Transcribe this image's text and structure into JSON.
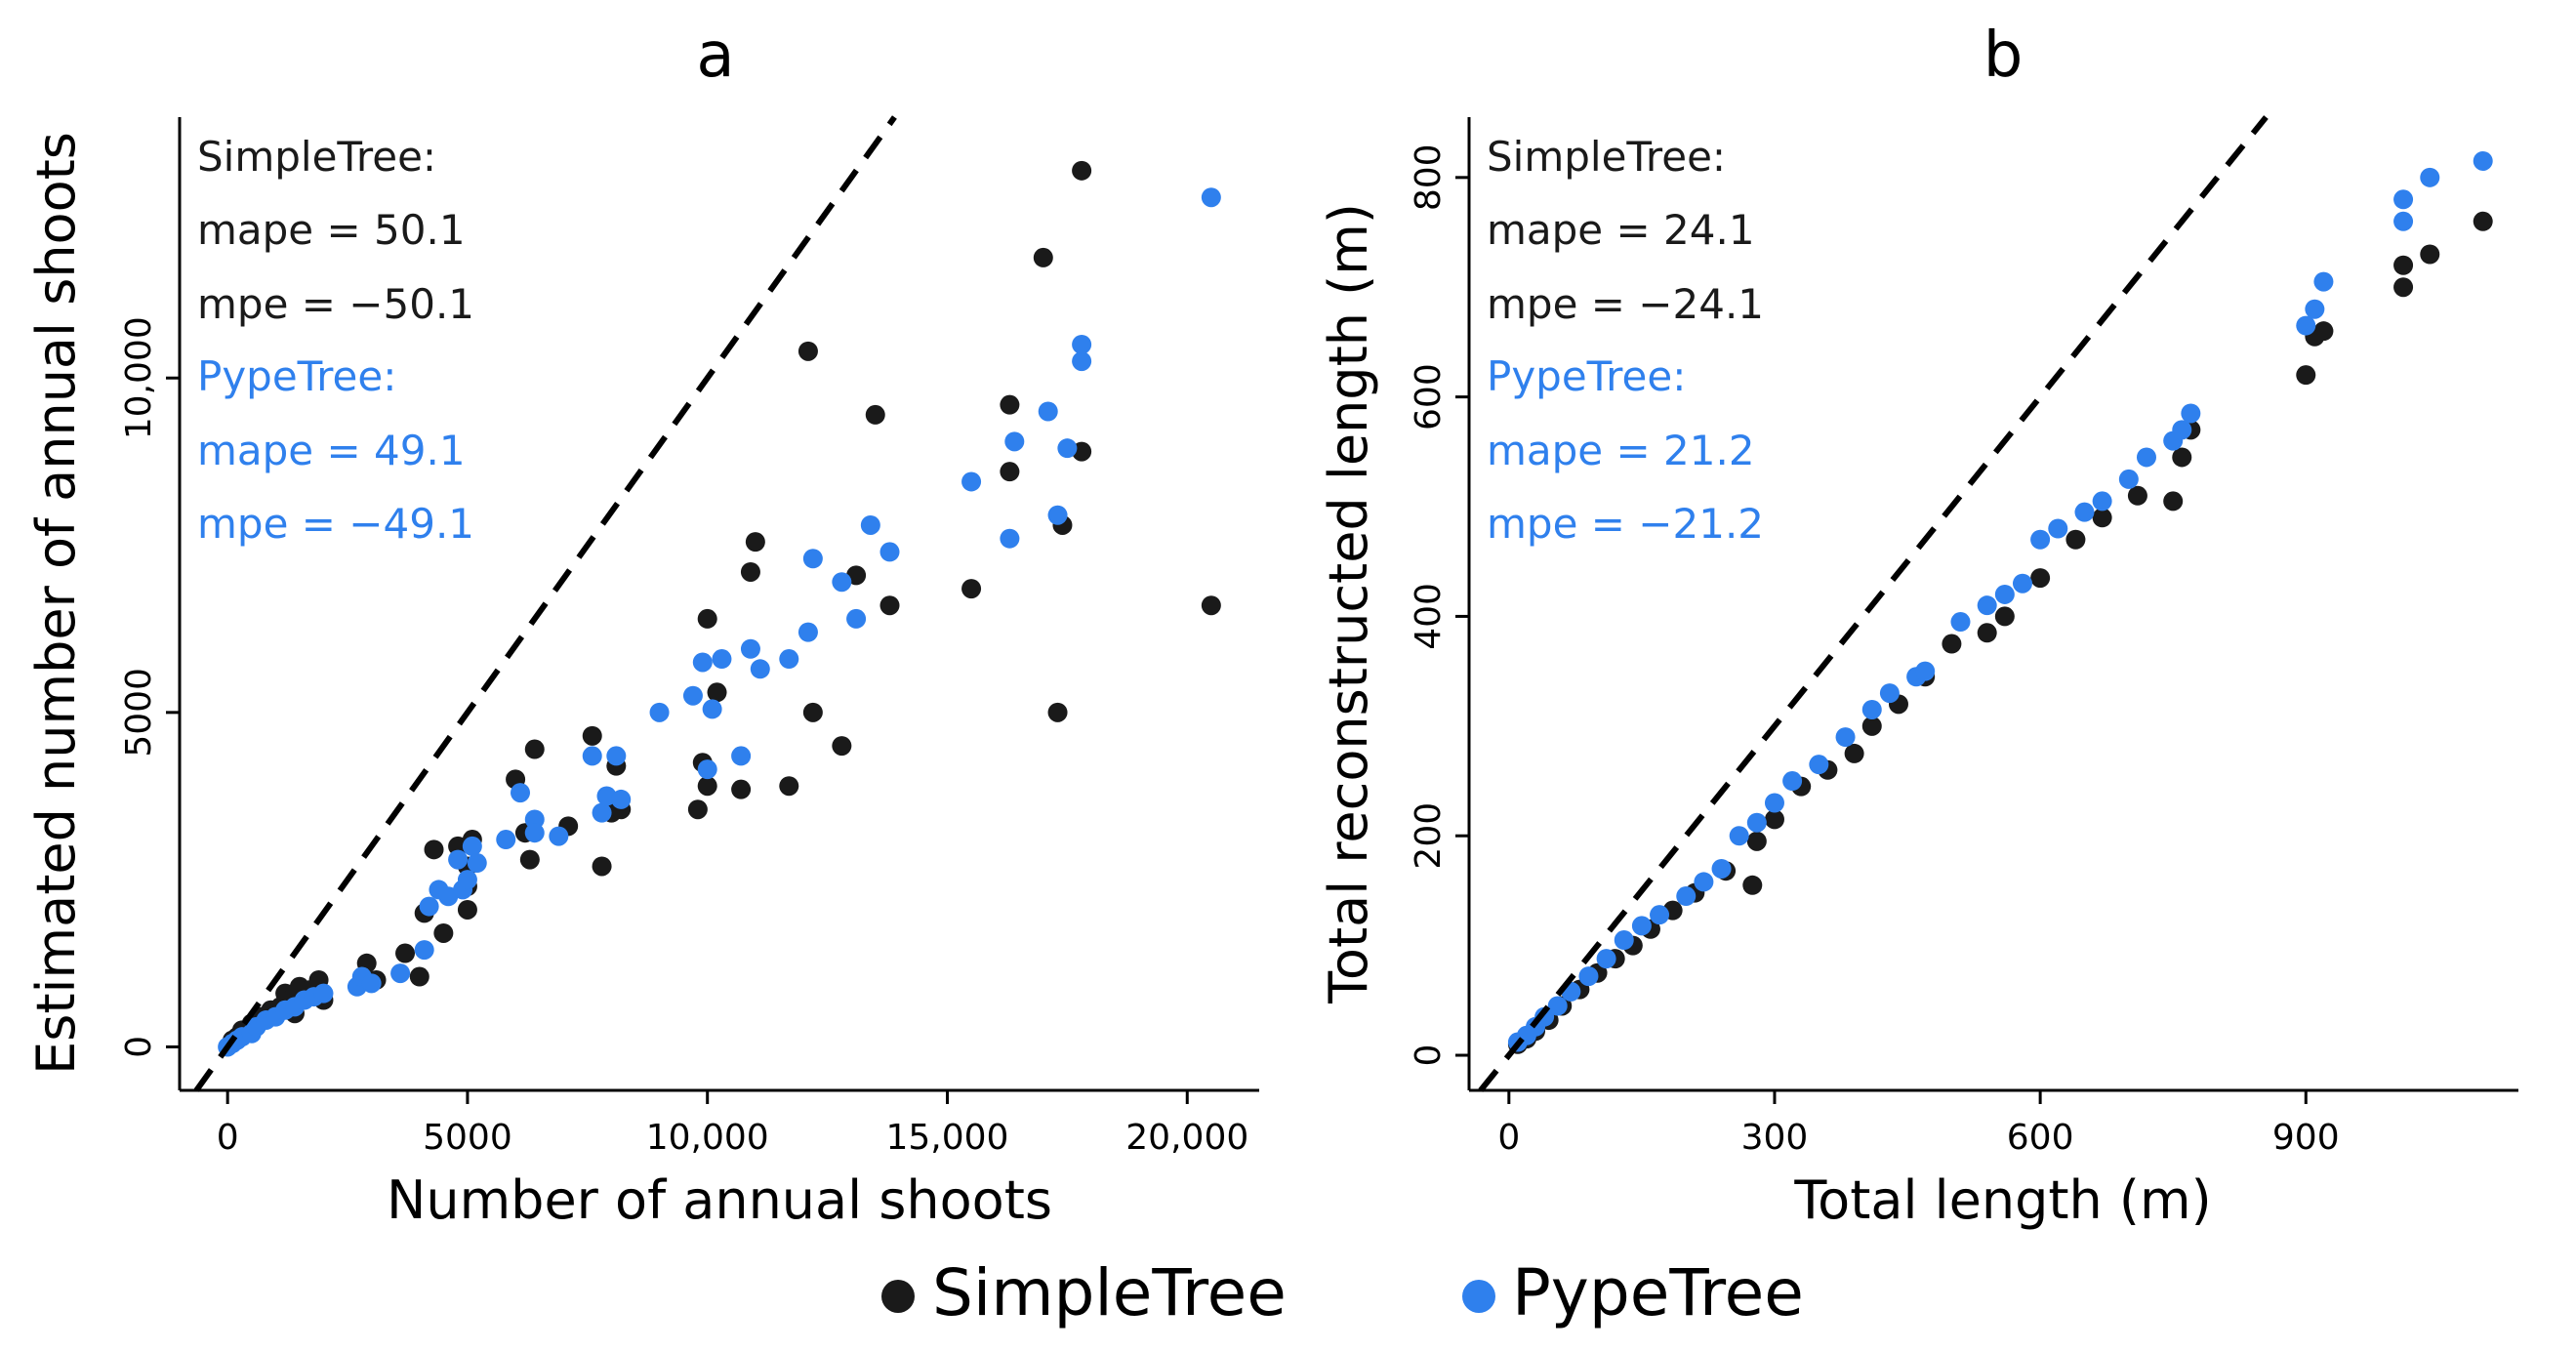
{
  "colors": {
    "simpletree": "#1a1a1a",
    "pypetree": "#2f80ed",
    "axis": "#000000",
    "ref_line": "#000000"
  },
  "legend": {
    "position": "bottom-center",
    "items": [
      {
        "label": "SimpleTree",
        "color": "#1a1a1a"
      },
      {
        "label": "PypeTree",
        "color": "#2f80ed"
      }
    ]
  },
  "chart_data": [
    {
      "type": "scatter",
      "title": "a",
      "xlabel": "Number of annual shoots",
      "ylabel": "Estimated number of annual shoots",
      "xlim": [
        -1000,
        21500
      ],
      "ylim": [
        -650,
        13900
      ],
      "xticks": [
        0,
        5000,
        10000,
        15000,
        20000
      ],
      "xtick_labels": [
        "0",
        "5000",
        "10,000",
        "15,000",
        "20,000"
      ],
      "yticks": [
        0,
        5000,
        10000
      ],
      "ytick_labels": [
        "0",
        "5000",
        "10,000"
      ],
      "reference_line": "y = x",
      "grid": false,
      "annotations": [
        {
          "text": "SimpleTree:",
          "series": "SimpleTree"
        },
        {
          "text": "mape = 50.1",
          "series": "SimpleTree"
        },
        {
          "text": "mpe = −50.1",
          "series": "SimpleTree"
        },
        {
          "text": "PypeTree:",
          "series": "PypeTree"
        },
        {
          "text": "mape = 49.1",
          "series": "PypeTree"
        },
        {
          "text": "mpe = −49.1",
          "series": "PypeTree"
        }
      ],
      "series": [
        {
          "name": "SimpleTree",
          "points": [
            [
              100,
              100
            ],
            [
              200,
              150
            ],
            [
              300,
              250
            ],
            [
              500,
              350
            ],
            [
              700,
              450
            ],
            [
              900,
              550
            ],
            [
              1100,
              600
            ],
            [
              1200,
              800
            ],
            [
              1300,
              700
            ],
            [
              1400,
              500
            ],
            [
              1500,
              900
            ],
            [
              1700,
              850
            ],
            [
              1900,
              1000
            ],
            [
              2000,
              700
            ],
            [
              2900,
              1250
            ],
            [
              3100,
              1000
            ],
            [
              3700,
              1400
            ],
            [
              4000,
              1050
            ],
            [
              4100,
              2000
            ],
            [
              4300,
              2950
            ],
            [
              4500,
              1700
            ],
            [
              4800,
              3000
            ],
            [
              5000,
              2700
            ],
            [
              5000,
              2050
            ],
            [
              5100,
              3100
            ],
            [
              5000,
              2400
            ],
            [
              6000,
              4000
            ],
            [
              6200,
              3200
            ],
            [
              6300,
              2800
            ],
            [
              6400,
              4450
            ],
            [
              7100,
              3300
            ],
            [
              7600,
              4650
            ],
            [
              7800,
              2700
            ],
            [
              8100,
              4200
            ],
            [
              8000,
              3500
            ],
            [
              8200,
              3550
            ],
            [
              9800,
              3550
            ],
            [
              9900,
              4250
            ],
            [
              10000,
              3900
            ],
            [
              10000,
              6400
            ],
            [
              10200,
              5300
            ],
            [
              10700,
              3850
            ],
            [
              10900,
              7100
            ],
            [
              11000,
              7550
            ],
            [
              11700,
              3900
            ],
            [
              12100,
              10400
            ],
            [
              12200,
              5000
            ],
            [
              12800,
              4500
            ],
            [
              13100,
              7050
            ],
            [
              13500,
              9450
            ],
            [
              13800,
              6600
            ],
            [
              15500,
              6850
            ],
            [
              16300,
              8600
            ],
            [
              16300,
              9600
            ],
            [
              17000,
              11800
            ],
            [
              17300,
              5000
            ],
            [
              17400,
              7800
            ],
            [
              17800,
              13100
            ],
            [
              17800,
              8900
            ],
            [
              20500,
              6600
            ]
          ]
        },
        {
          "name": "PypeTree",
          "points": [
            [
              0,
              0
            ],
            [
              100,
              50
            ],
            [
              200,
              100
            ],
            [
              300,
              150
            ],
            [
              500,
              200
            ],
            [
              600,
              300
            ],
            [
              800,
              400
            ],
            [
              1000,
              450
            ],
            [
              1200,
              550
            ],
            [
              1400,
              600
            ],
            [
              1600,
              700
            ],
            [
              1800,
              750
            ],
            [
              2000,
              800
            ],
            [
              2700,
              900
            ],
            [
              2800,
              1050
            ],
            [
              3000,
              950
            ],
            [
              3600,
              1100
            ],
            [
              4100,
              1450
            ],
            [
              4200,
              2100
            ],
            [
              4400,
              2350
            ],
            [
              4600,
              2250
            ],
            [
              4800,
              2800
            ],
            [
              4900,
              2350
            ],
            [
              5000,
              2500
            ],
            [
              5100,
              3000
            ],
            [
              5200,
              2750
            ],
            [
              5800,
              3100
            ],
            [
              6100,
              3800
            ],
            [
              6400,
              3400
            ],
            [
              6400,
              3200
            ],
            [
              6900,
              3150
            ],
            [
              7600,
              4350
            ],
            [
              7800,
              3500
            ],
            [
              7900,
              3750
            ],
            [
              8100,
              4350
            ],
            [
              8200,
              3700
            ],
            [
              9000,
              5000
            ],
            [
              9700,
              5250
            ],
            [
              9900,
              5750
            ],
            [
              10000,
              4150
            ],
            [
              10100,
              5050
            ],
            [
              10300,
              5800
            ],
            [
              10700,
              4350
            ],
            [
              10900,
              5950
            ],
            [
              11100,
              5650
            ],
            [
              11700,
              5800
            ],
            [
              12100,
              6200
            ],
            [
              12200,
              7300
            ],
            [
              12800,
              6950
            ],
            [
              13100,
              6400
            ],
            [
              13400,
              7800
            ],
            [
              13800,
              7400
            ],
            [
              15500,
              8450
            ],
            [
              16300,
              7600
            ],
            [
              16400,
              9050
            ],
            [
              17100,
              9500
            ],
            [
              17300,
              7950
            ],
            [
              17500,
              8950
            ],
            [
              17800,
              10250
            ],
            [
              17800,
              10500
            ],
            [
              20500,
              12700
            ]
          ]
        }
      ]
    },
    {
      "type": "scatter",
      "title": "b",
      "xlabel": "Total length (m)",
      "ylabel": "Total reconstructed length (m)",
      "xlim": [
        -45,
        1140
      ],
      "ylim": [
        -32,
        855
      ],
      "xticks": [
        0,
        300,
        600,
        900
      ],
      "xtick_labels": [
        "0",
        "300",
        "600",
        "900"
      ],
      "yticks": [
        0,
        200,
        400,
        600,
        800
      ],
      "ytick_labels": [
        "0",
        "200",
        "400",
        "600",
        "800"
      ],
      "reference_line": "y = x",
      "grid": false,
      "annotations": [
        {
          "text": "SimpleTree:",
          "series": "SimpleTree"
        },
        {
          "text": "mape = 24.1",
          "series": "SimpleTree"
        },
        {
          "text": "mpe = −24.1",
          "series": "SimpleTree"
        },
        {
          "text": "PypeTree:",
          "series": "PypeTree"
        },
        {
          "text": "mape = 21.2",
          "series": "PypeTree"
        },
        {
          "text": "mpe = −21.2",
          "series": "PypeTree"
        }
      ],
      "series": [
        {
          "name": "SimpleTree",
          "points": [
            [
              10,
              10
            ],
            [
              20,
              15
            ],
            [
              30,
              22
            ],
            [
              45,
              32
            ],
            [
              60,
              45
            ],
            [
              80,
              60
            ],
            [
              100,
              75
            ],
            [
              120,
              88
            ],
            [
              140,
              100
            ],
            [
              160,
              115
            ],
            [
              185,
              132
            ],
            [
              210,
              148
            ],
            [
              245,
              168
            ],
            [
              275,
              155
            ],
            [
              280,
              195
            ],
            [
              300,
              215
            ],
            [
              330,
              245
            ],
            [
              360,
              260
            ],
            [
              390,
              275
            ],
            [
              410,
              300
            ],
            [
              440,
              320
            ],
            [
              470,
              345
            ],
            [
              500,
              375
            ],
            [
              540,
              385
            ],
            [
              560,
              400
            ],
            [
              600,
              435
            ],
            [
              640,
              470
            ],
            [
              670,
              490
            ],
            [
              710,
              510
            ],
            [
              750,
              505
            ],
            [
              760,
              545
            ],
            [
              770,
              570
            ],
            [
              900,
              620
            ],
            [
              910,
              655
            ],
            [
              920,
              660
            ],
            [
              1010,
              700
            ],
            [
              1010,
              720
            ],
            [
              1040,
              730
            ],
            [
              1100,
              760
            ]
          ]
        },
        {
          "name": "PypeTree",
          "points": [
            [
              10,
              12
            ],
            [
              20,
              18
            ],
            [
              30,
              26
            ],
            [
              40,
              35
            ],
            [
              55,
              45
            ],
            [
              70,
              58
            ],
            [
              90,
              72
            ],
            [
              110,
              88
            ],
            [
              130,
              105
            ],
            [
              150,
              118
            ],
            [
              170,
              128
            ],
            [
              200,
              145
            ],
            [
              220,
              158
            ],
            [
              240,
              170
            ],
            [
              260,
              200
            ],
            [
              280,
              212
            ],
            [
              300,
              230
            ],
            [
              320,
              250
            ],
            [
              350,
              265
            ],
            [
              380,
              290
            ],
            [
              410,
              315
            ],
            [
              430,
              330
            ],
            [
              460,
              345
            ],
            [
              470,
              350
            ],
            [
              510,
              395
            ],
            [
              540,
              410
            ],
            [
              560,
              420
            ],
            [
              580,
              430
            ],
            [
              600,
              470
            ],
            [
              620,
              480
            ],
            [
              650,
              495
            ],
            [
              670,
              505
            ],
            [
              700,
              525
            ],
            [
              720,
              545
            ],
            [
              750,
              560
            ],
            [
              760,
              570
            ],
            [
              770,
              585
            ],
            [
              900,
              665
            ],
            [
              910,
              680
            ],
            [
              920,
              705
            ],
            [
              1010,
              760
            ],
            [
              1010,
              780
            ],
            [
              1040,
              800
            ],
            [
              1100,
              815
            ]
          ]
        }
      ]
    }
  ]
}
